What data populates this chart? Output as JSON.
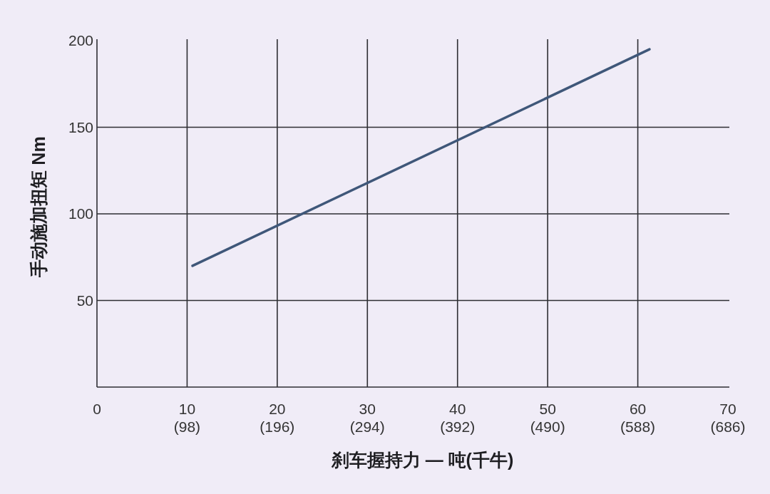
{
  "chart_data": {
    "type": "line",
    "xlabel": "刹车握持力 — 吨(千牛)",
    "ylabel": "手动施加扭矩 Nm",
    "x": [
      10.6,
      61.3
    ],
    "series": [
      {
        "color": "#3f5779",
        "values": [
          70,
          195
        ]
      }
    ],
    "xlim": [
      0,
      70
    ],
    "ylim": [
      0,
      200
    ],
    "xticks": [
      0,
      10,
      20,
      30,
      40,
      50,
      60,
      70
    ],
    "x2lim": [
      0,
      686
    ],
    "x2ticks": [
      {
        "value": 98,
        "label": "(98)"
      },
      {
        "value": 196,
        "label": "(196)"
      },
      {
        "value": 294,
        "label": "(294)"
      },
      {
        "value": 392,
        "label": "(392)"
      },
      {
        "value": 490,
        "label": "(490)"
      },
      {
        "value": 588,
        "label": "(588)"
      },
      {
        "value": 686,
        "label": "(686)"
      }
    ],
    "yticks": [
      50,
      100,
      150,
      200
    ],
    "grid": true
  }
}
